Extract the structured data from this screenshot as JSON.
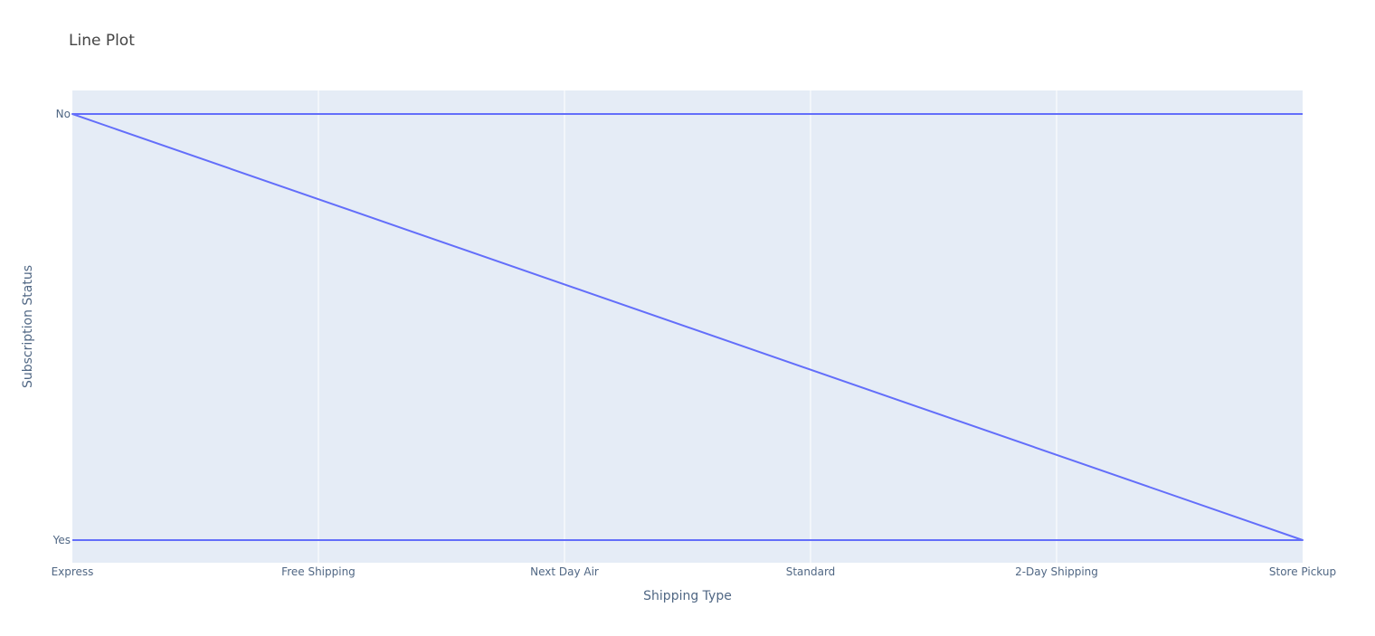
{
  "chart_data": {
    "type": "line",
    "title": "Line Plot",
    "xlabel": "Shipping Type",
    "ylabel": "Subscription Status",
    "categories": [
      "Express",
      "Free Shipping",
      "Next Day Air",
      "Standard",
      "2-Day Shipping",
      "Store Pickup"
    ],
    "y_categories": [
      "Yes",
      "No"
    ],
    "series": [
      {
        "x": [
          "Express",
          "Free Shipping",
          "Next Day Air",
          "Standard",
          "2-Day Shipping",
          "Store Pickup",
          "Express",
          "Free Shipping",
          "Next Day Air",
          "Standard",
          "2-Day Shipping",
          "Store Pickup"
        ],
        "y": [
          "Yes",
          "Yes",
          "Yes",
          "Yes",
          "Yes",
          "Yes",
          "No",
          "No",
          "No",
          "No",
          "No",
          "No"
        ],
        "_comment": "",
        "color": "#636efa"
      }
    ],
    "grid": true,
    "legend": "none",
    "plot_background": "#e5ecf6",
    "gridline_color": "#ffffff"
  }
}
